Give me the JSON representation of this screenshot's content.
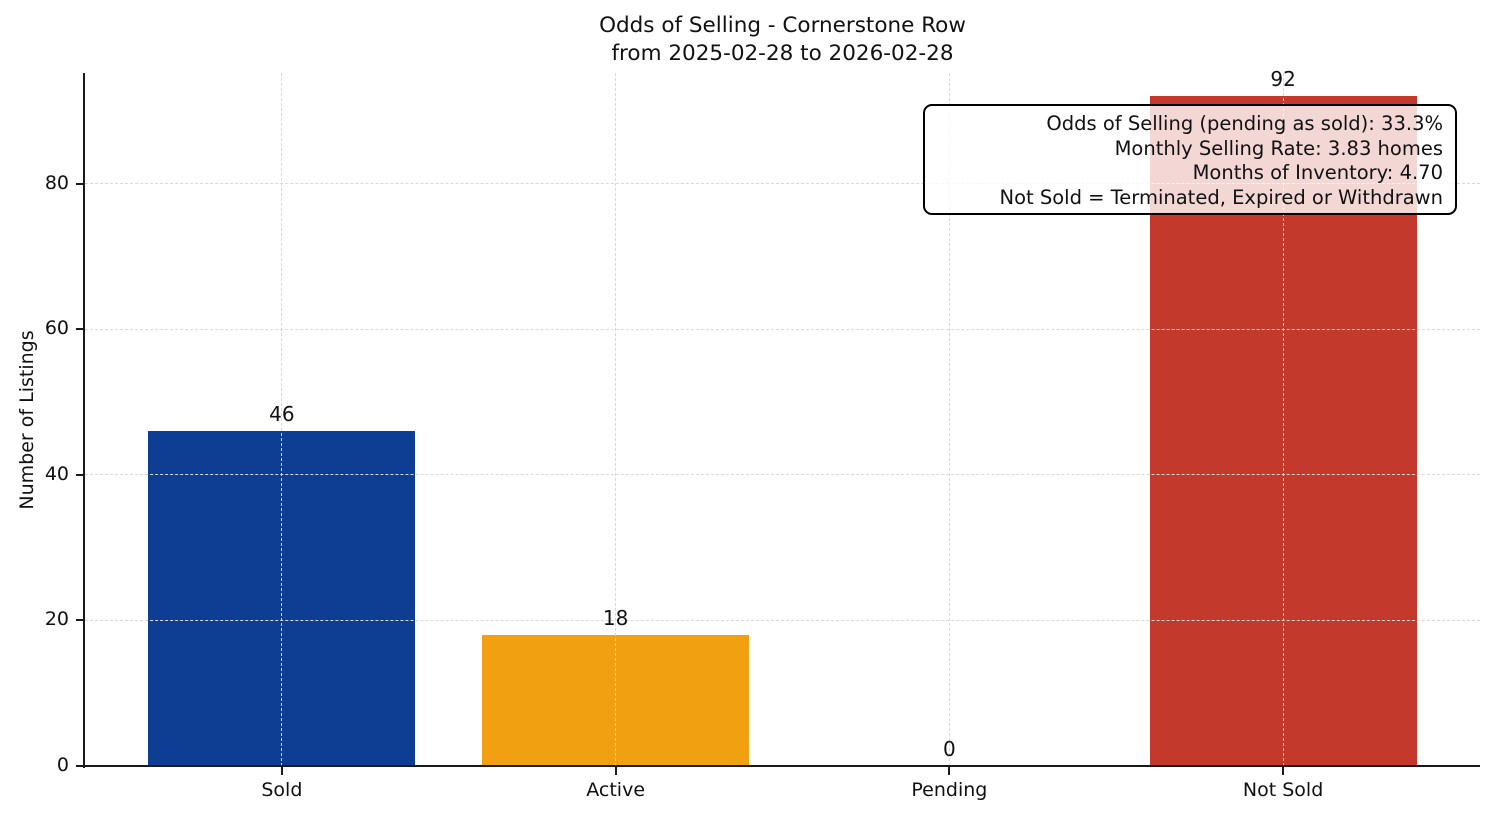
{
  "chart_data": {
    "type": "bar",
    "title_lines": [
      "Odds of Selling - Cornerstone Row",
      "from 2025-02-28 to 2026-02-28"
    ],
    "categories": [
      "Sold",
      "Active",
      "Pending",
      "Not Sold"
    ],
    "values": [
      46,
      18,
      0,
      92
    ],
    "bar_colors": [
      "#0e3d94",
      "#f0a011",
      "#2e8b57",
      "#c3392c"
    ],
    "bar_width": 0.8,
    "xlabel": "",
    "ylabel": "Number of Listings",
    "yticks": [
      0,
      20,
      40,
      60,
      80
    ],
    "ylim": [
      0,
      95.2
    ],
    "xlim": [
      -0.59,
      3.59
    ],
    "grid": true,
    "grid_style": "dashed",
    "legend_position": "none",
    "annotation": {
      "lines": [
        "Odds of Selling (pending as sold): 33.3%",
        "Monthly Selling Rate: 3.83 homes",
        "Months of Inventory: 4.70",
        "Not Sold = Terminated, Expired or Withdrawn"
      ]
    },
    "colors": {
      "grid": "#d8d8d8",
      "axis": "#1a1a1a",
      "text": "#111111",
      "annotation_border": "#000000",
      "annotation_background": "rgba(255,255,255,0.8)"
    }
  }
}
